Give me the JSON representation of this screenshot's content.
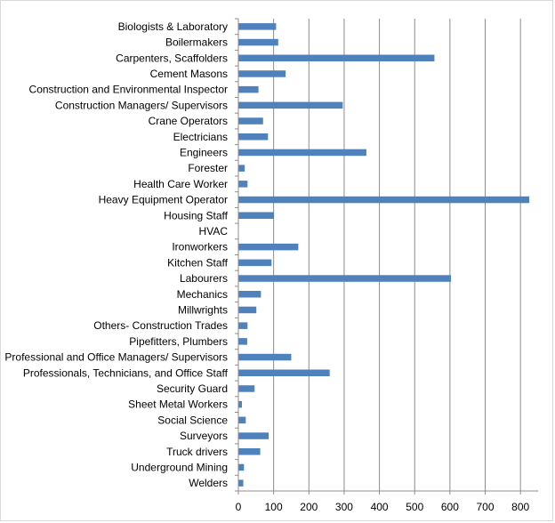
{
  "chart_data": {
    "type": "bar",
    "orientation": "horizontal",
    "title": "",
    "xlabel": "",
    "ylabel": "",
    "xlim": [
      0,
      850
    ],
    "x_ticks": [
      0,
      100,
      200,
      300,
      400,
      500,
      600,
      700,
      800
    ],
    "grid": true,
    "legend": "none",
    "bar_color": "#4f81bd",
    "categories": [
      "Biologists & Laboratory",
      "Boilermakers",
      "Carpenters, Scaffolders",
      "Cement Masons",
      "Construction and Environmental Inspector",
      "Construction Managers/ Supervisors",
      "Crane Operators",
      "Electricians",
      "Engineers",
      "Forester",
      "Health Care Worker",
      "Heavy Equipment Operator",
      "Housing Staff",
      "HVAC",
      "Ironworkers",
      "Kitchen Staff",
      "Labourers",
      "Mechanics",
      "Millwrights",
      "Others- Construction Trades",
      "Pipefitters, Plumbers",
      "Professional and Office Managers/ Supervisors",
      "Professionals, Technicians, and Office Staff",
      "Security Guard",
      "Sheet Metal Workers",
      "Social Science",
      "Surveyors",
      "Truck drivers",
      "Underground Mining",
      "Welders"
    ],
    "values": [
      107,
      113,
      556,
      134,
      57,
      296,
      70,
      84,
      363,
      18,
      26,
      825,
      101,
      0,
      170,
      94,
      603,
      64,
      51,
      26,
      25,
      150,
      259,
      46,
      10,
      21,
      86,
      62,
      16,
      14
    ]
  }
}
